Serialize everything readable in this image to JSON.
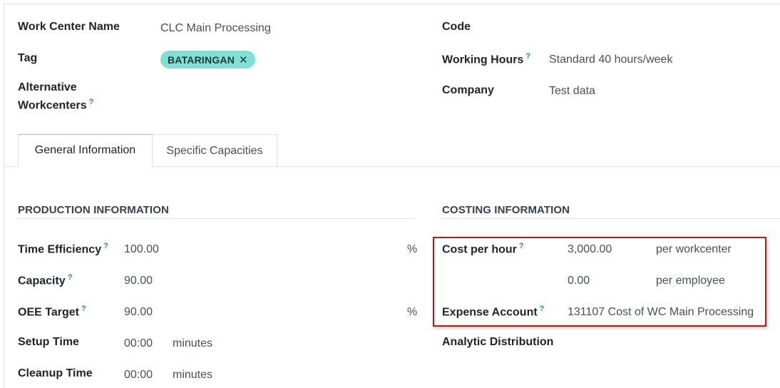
{
  "header": {
    "work_center_name_label": "Work Center Name",
    "work_center_name_value": "CLC Main Processing",
    "tag_label": "Tag",
    "tag_value": "BATARINGAN",
    "tag_remove": "✕",
    "alt_workcenters_label_1": "Alternative",
    "alt_workcenters_label_2": "Workcenters",
    "code_label": "Code",
    "working_hours_label": "Working Hours",
    "working_hours_value": "Standard 40 hours/week",
    "company_label": "Company",
    "company_value": "Test data",
    "help_mark": "?"
  },
  "tabs": [
    {
      "label": "General Information",
      "active": true
    },
    {
      "label": "Specific Capacities",
      "active": false
    }
  ],
  "production": {
    "title": "PRODUCTION INFORMATION",
    "time_efficiency_label": "Time Efficiency",
    "time_efficiency_value": "100.00",
    "time_efficiency_unit": "%",
    "capacity_label": "Capacity",
    "capacity_value": "90.00",
    "oee_label": "OEE Target",
    "oee_value": "90.00",
    "oee_unit": "%",
    "setup_label": "Setup Time",
    "setup_value": "00:00",
    "setup_unit": "minutes",
    "cleanup_label": "Cleanup Time",
    "cleanup_value": "00:00",
    "cleanup_unit": "minutes"
  },
  "costing": {
    "title": "COSTING INFORMATION",
    "cost_per_hour_label": "Cost per hour",
    "cost_workcenter_value": "3,000.00",
    "cost_workcenter_unit": "per workcenter",
    "cost_employee_value": "0.00",
    "cost_employee_unit": "per employee",
    "expense_account_label": "Expense Account",
    "expense_account_value": "131107 Cost of WC Main Processing",
    "analytic_label": "Analytic Distribution"
  },
  "colors": {
    "tag_bg": "#7fe0d6",
    "help_blue": "#0d8fb3",
    "highlight_border": "#b01c22"
  }
}
